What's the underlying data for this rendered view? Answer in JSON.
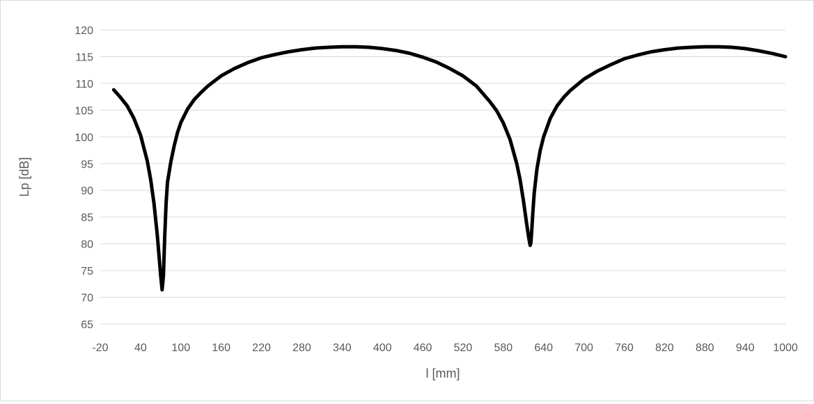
{
  "chart_data": {
    "type": "line",
    "xlabel": "l [mm]",
    "ylabel": "Lp [dB]",
    "xlim": [
      -20,
      1000
    ],
    "ylim": [
      65,
      120
    ],
    "x_ticks": [
      -20,
      40,
      100,
      160,
      220,
      280,
      340,
      400,
      460,
      520,
      580,
      640,
      700,
      760,
      820,
      880,
      940,
      1000
    ],
    "y_ticks": [
      65,
      70,
      75,
      80,
      85,
      90,
      95,
      100,
      105,
      110,
      115,
      120
    ],
    "grid": "horizontal",
    "legend": "none",
    "line_color": "#000000",
    "series": [
      {
        "x": [
          0,
          10,
          20,
          30,
          40,
          50,
          55,
          60,
          65,
          70,
          72,
          74,
          76,
          78,
          80,
          85,
          90,
          95,
          100,
          110,
          120,
          130,
          140,
          160,
          180,
          200,
          220,
          240,
          260,
          280,
          300,
          320,
          340,
          360,
          380,
          400,
          420,
          440,
          460,
          480,
          500,
          520,
          540,
          560,
          570,
          580,
          590,
          600,
          605,
          610,
          615,
          618,
          620,
          621,
          622,
          624,
          626,
          630,
          635,
          640,
          650,
          660,
          670,
          680,
          700,
          720,
          740,
          760,
          780,
          800,
          820,
          840,
          860,
          880,
          900,
          920,
          940,
          960,
          980,
          1000
        ],
        "y": [
          108.8,
          107.4,
          105.8,
          103.5,
          100.3,
          95.5,
          92.0,
          87.5,
          81.5,
          74.0,
          71.4,
          74.0,
          81.5,
          87.5,
          91.5,
          95.3,
          98.3,
          100.8,
          102.7,
          105.2,
          107.0,
          108.3,
          109.5,
          111.4,
          112.8,
          113.9,
          114.8,
          115.4,
          115.9,
          116.3,
          116.6,
          116.75,
          116.85,
          116.85,
          116.75,
          116.5,
          116.15,
          115.65,
          114.9,
          114.0,
          112.8,
          111.4,
          109.5,
          106.6,
          104.9,
          102.6,
          99.5,
          95.0,
          92.0,
          88.0,
          83.5,
          81.0,
          79.7,
          80.2,
          81.8,
          86.0,
          89.5,
          94.0,
          97.5,
          100.0,
          103.5,
          105.8,
          107.4,
          108.7,
          110.8,
          112.3,
          113.5,
          114.6,
          115.3,
          115.9,
          116.3,
          116.6,
          116.75,
          116.85,
          116.85,
          116.75,
          116.5,
          116.1,
          115.6,
          115.0
        ]
      }
    ]
  }
}
